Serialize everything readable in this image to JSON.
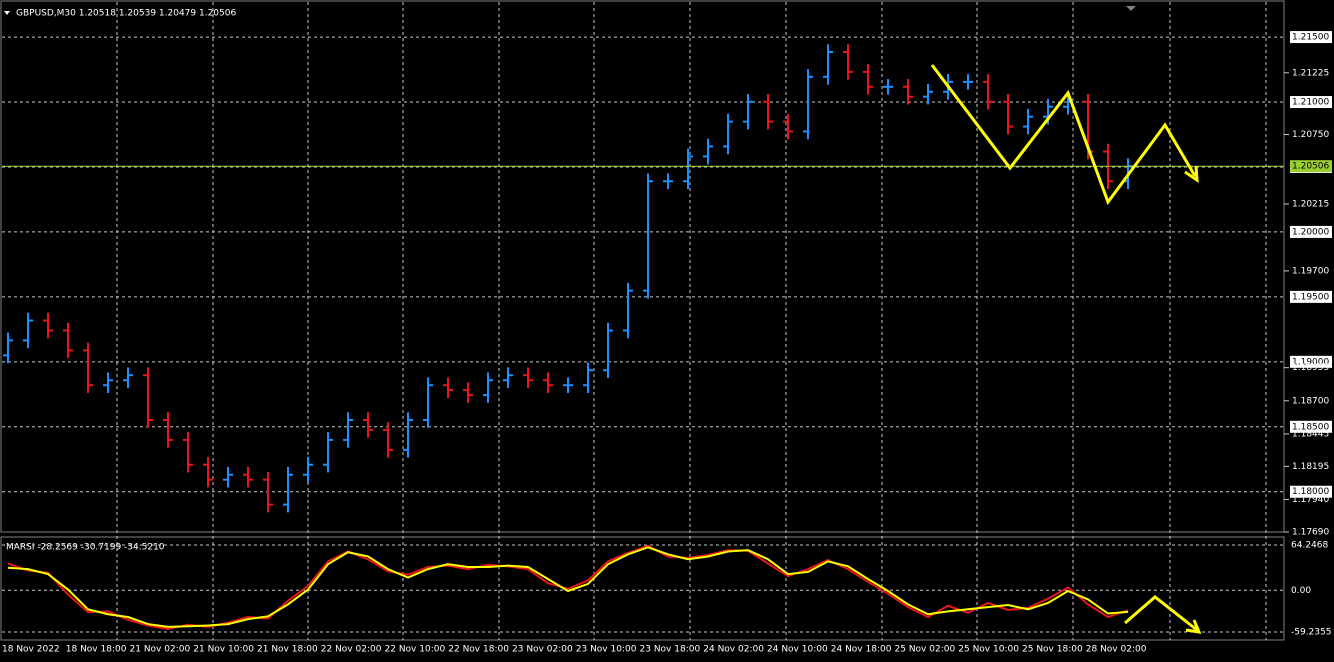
{
  "header": {
    "symbol_line": "GBPUSD,M30  1.20518 1.20539 1.20479 1.20506"
  },
  "chart_data": [
    {
      "type": "ohlc",
      "up_color": "#1e90ff",
      "down_color": "#e8161b",
      "x_labels": [
        "18 Nov 2022",
        "18 Nov 18:00",
        "21 Nov 02:00",
        "21 Nov 10:00",
        "21 Nov 18:00",
        "22 Nov 02:00",
        "22 Nov 10:00",
        "22 Nov 18:00",
        "23 Nov 02:00",
        "23 Nov 10:00",
        "23 Nov 18:00",
        "24 Nov 02:00",
        "24 Nov 10:00",
        "24 Nov 18:00",
        "25 Nov 02:00",
        "25 Nov 10:00",
        "25 Nov 18:00",
        "28 Nov 02:00"
      ],
      "open": [
        1.1905,
        1.19165,
        1.19318,
        1.19241,
        1.19088,
        1.1882,
        1.18858,
        1.18897,
        1.18552,
        1.18399,
        1.18208,
        1.18093,
        1.18131,
        1.18093,
        1.17901,
        1.18131,
        1.18208,
        1.18399,
        1.18552,
        1.18476,
        1.18322,
        1.18552,
        1.1882,
        1.18782,
        1.18744,
        1.18858,
        1.18897,
        1.18858,
        1.1882,
        1.1882,
        1.18935,
        1.19241,
        1.19548,
        1.2039,
        1.2039,
        1.20581,
        1.20658,
        1.20849,
        1.21002,
        1.20849,
        1.20773,
        1.21194,
        1.21385,
        1.21232,
        1.21117,
        1.21117,
        1.21041,
        1.21079,
        1.21155,
        1.21155,
        1.21002,
        1.20811,
        1.20887,
        1.20964,
        1.21002,
        1.20619,
        1.2039
      ],
      "high": [
        1.19225,
        1.19378,
        1.19378,
        1.19301,
        1.19148,
        1.18918,
        1.18957,
        1.18957,
        1.18612,
        1.18459,
        1.18268,
        1.18191,
        1.18191,
        1.18153,
        1.18191,
        1.18268,
        1.18459,
        1.18612,
        1.18612,
        1.18536,
        1.18612,
        1.1888,
        1.1888,
        1.18842,
        1.18918,
        1.18957,
        1.18957,
        1.18918,
        1.1888,
        1.18995,
        1.19301,
        1.19608,
        1.2045,
        1.2045,
        1.20641,
        1.20718,
        1.20909,
        1.21062,
        1.21062,
        1.20909,
        1.21254,
        1.21445,
        1.21445,
        1.21292,
        1.21177,
        1.21177,
        1.21139,
        1.21215,
        1.21215,
        1.21215,
        1.21062,
        1.20947,
        1.21024,
        1.21062,
        1.21062,
        1.20679,
        1.20566
      ],
      "low": [
        1.1899,
        1.19105,
        1.19181,
        1.19028,
        1.1876,
        1.1876,
        1.18798,
        1.18492,
        1.18339,
        1.18148,
        1.18033,
        1.18033,
        1.18033,
        1.17841,
        1.17841,
        1.18071,
        1.18148,
        1.18339,
        1.18416,
        1.18262,
        1.18262,
        1.18492,
        1.18722,
        1.18684,
        1.18684,
        1.18798,
        1.18798,
        1.1876,
        1.1876,
        1.1876,
        1.18875,
        1.19181,
        1.19488,
        1.2033,
        1.2033,
        1.20521,
        1.20598,
        1.20789,
        1.20789,
        1.20713,
        1.20713,
        1.21134,
        1.21172,
        1.21057,
        1.21057,
        1.20981,
        1.20981,
        1.21019,
        1.21095,
        1.20942,
        1.20751,
        1.20751,
        1.20827,
        1.20904,
        1.20559,
        1.2033,
        1.2033
      ],
      "close": [
        1.19165,
        1.19318,
        1.19241,
        1.19088,
        1.1882,
        1.18858,
        1.18897,
        1.18552,
        1.18399,
        1.18208,
        1.18093,
        1.18131,
        1.18093,
        1.17901,
        1.18131,
        1.18208,
        1.18399,
        1.18552,
        1.18476,
        1.18322,
        1.18552,
        1.1882,
        1.18782,
        1.18744,
        1.18858,
        1.18897,
        1.18858,
        1.1882,
        1.1882,
        1.18935,
        1.19241,
        1.19548,
        1.2039,
        1.2039,
        1.20581,
        1.20658,
        1.20849,
        1.21002,
        1.20849,
        1.20773,
        1.21194,
        1.21385,
        1.21232,
        1.21117,
        1.21117,
        1.21041,
        1.21079,
        1.21155,
        1.21155,
        1.21002,
        1.20811,
        1.20887,
        1.20964,
        1.21002,
        1.20619,
        1.2039,
        1.20506
      ],
      "ylim": [
        1.1769,
        1.2177
      ],
      "yticks": [
        {
          "value": 1.215,
          "label": "1.21500"
        },
        {
          "value": 1.21,
          "label": "1.21000"
        },
        {
          "value": 1.205,
          "label": "1.20500"
        },
        {
          "value": 1.2,
          "label": "1.20000"
        },
        {
          "value": 1.195,
          "label": "1.19500"
        },
        {
          "value": 1.19,
          "label": "1.19000"
        },
        {
          "value": 1.185,
          "label": "1.18500"
        },
        {
          "value": 1.18,
          "label": "1.18000"
        }
      ],
      "ylabels": [
        {
          "value": 1.21225,
          "label": "1.21225"
        },
        {
          "value": 1.2075,
          "label": "1.20750"
        },
        {
          "value": 1.20215,
          "label": "1.20215"
        },
        {
          "value": 1.197,
          "label": "1.19700"
        },
        {
          "value": 1.18955,
          "label": "1.18955"
        },
        {
          "value": 1.187,
          "label": "1.18700"
        },
        {
          "value": 1.18445,
          "label": "1.18445"
        },
        {
          "value": 1.18195,
          "label": "1.18195"
        },
        {
          "value": 1.1794,
          "label": "1.17940"
        },
        {
          "value": 1.1769,
          "label": "1.17690"
        }
      ],
      "current_price": {
        "value": 1.20506,
        "label": "1.20506"
      },
      "current_color": "#9acd32"
    },
    {
      "type": "line",
      "title": "MARSI -28.2569 -30.7199 -34.5210",
      "series": [
        {
          "color": "#e8161b",
          "values": [
            38,
            28,
            25,
            -6,
            -31,
            -30,
            -42,
            -50,
            -55,
            -49,
            -52,
            -46,
            -38,
            -40,
            -15,
            6,
            41,
            55,
            44,
            27,
            22,
            33,
            35,
            30,
            36,
            34,
            30,
            10,
            2,
            14,
            41,
            53,
            63,
            48,
            46,
            50,
            57,
            56,
            38,
            20,
            30,
            43,
            30,
            12,
            -5,
            -24,
            -38,
            -22,
            -32,
            -18,
            -28,
            -25,
            -12,
            4,
            -20,
            -38,
            -28.2569
          ]
        },
        {
          "color": "#ffff00",
          "values": [
            32,
            30,
            23,
            1,
            -27,
            -34,
            -38,
            -48,
            -52,
            -51,
            -50,
            -48,
            -41,
            -37,
            -20,
            1,
            37,
            54,
            48,
            30,
            18,
            30,
            37,
            33,
            33,
            35,
            33,
            16,
            -1,
            9,
            37,
            51,
            61,
            51,
            44,
            48,
            55,
            57,
            44,
            23,
            26,
            41,
            34,
            16,
            -1,
            -20,
            -34,
            -30,
            -27,
            -24,
            -21,
            -27,
            -18,
            -1,
            -13,
            -33,
            -30.7199
          ]
        }
      ],
      "ylim": [
        -70.6,
        74.2
      ],
      "yticks": [
        64.2468,
        {
          "value": 0,
          "label": "0.00"
        },
        -59.2355
      ]
    }
  ]
}
